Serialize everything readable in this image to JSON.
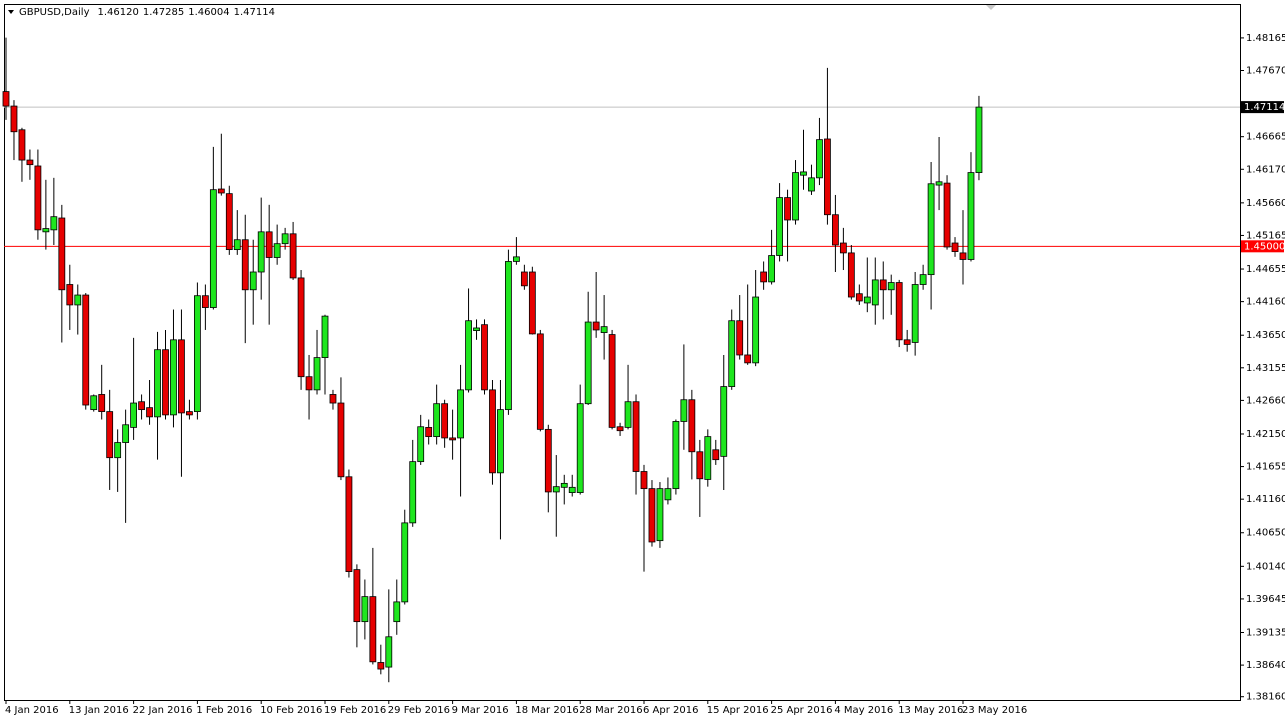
{
  "chart_data": {
    "type": "candlestick",
    "title": "GBPUSD,Daily",
    "header_values": [
      "1.46120",
      "1.47285",
      "1.46004",
      "1.47114"
    ],
    "up_color": "#1ee61e",
    "down_color": "#e60000",
    "wick_color": "#000000",
    "categories": [
      "4 Jan 2016",
      null,
      null,
      null,
      null,
      null,
      null,
      null,
      "13 Jan 2016",
      null,
      null,
      null,
      null,
      null,
      null,
      null,
      "22 Jan 2016",
      null,
      null,
      null,
      null,
      null,
      null,
      null,
      "1 Feb 2016",
      null,
      null,
      null,
      null,
      null,
      null,
      null,
      "10 Feb 2016",
      null,
      null,
      null,
      null,
      null,
      null,
      null,
      "19 Feb 2016",
      null,
      null,
      null,
      null,
      null,
      null,
      null,
      "29 Feb 2016",
      null,
      null,
      null,
      null,
      null,
      null,
      null,
      "9 Mar 2016",
      null,
      null,
      null,
      null,
      null,
      null,
      null,
      "18 Mar 2016",
      null,
      null,
      null,
      null,
      null,
      null,
      null,
      "28 Mar 2016",
      null,
      null,
      null,
      null,
      null,
      null,
      null,
      "6 Apr 2016",
      null,
      null,
      null,
      null,
      null,
      null,
      null,
      "15 Apr 2016",
      null,
      null,
      null,
      null,
      null,
      null,
      null,
      "25 Apr 2016",
      null,
      null,
      null,
      null,
      null,
      null,
      null,
      "4 May 2016",
      null,
      null,
      null,
      null,
      null,
      null,
      null,
      "13 May 2016",
      null,
      null,
      null,
      null,
      null,
      null,
      null,
      "23 May 2016",
      null,
      null
    ],
    "open": [
      1.4735,
      1.4713,
      1.4677,
      1.4631,
      1.4622,
      1.4522,
      1.4525,
      1.4543,
      1.4442,
      1.4411,
      1.4426,
      1.4252,
      1.4275,
      1.4249,
      1.4179,
      1.4202,
      1.4225,
      1.4264,
      1.4255,
      1.4241,
      1.4343,
      1.4244,
      1.4358,
      1.4249,
      1.4249,
      1.4425,
      1.4407,
      1.4587,
      1.458,
      1.4495,
      1.451,
      1.4434,
      1.4461,
      1.4522,
      1.4483,
      1.4504,
      1.4519,
      1.4452,
      1.4302,
      1.4282,
      1.4331,
      1.4275,
      1.4262,
      1.415,
      1.4009,
      1.393,
      1.3968,
      1.3868,
      1.3861,
      1.393,
      1.396,
      1.408,
      1.4173,
      1.4225,
      1.4211,
      1.4261,
      1.4209,
      1.4209,
      1.4282,
      1.4372,
      1.4381,
      1.4282,
      1.4156,
      1.4252,
      1.4477,
      1.4461,
      1.4461,
      1.4367,
      1.4222,
      1.4127,
      1.4134,
      1.4126,
      1.4126,
      1.4261,
      1.4385,
      1.4369,
      1.4366,
      1.4226,
      1.4225,
      1.4264,
      1.4158,
      1.4132,
      1.4053,
      1.4115,
      1.4132,
      1.4234,
      1.4267,
      1.4188,
      1.4146,
      1.4191,
      1.4181,
      1.4287,
      1.4387,
      1.4335,
      1.4323,
      1.4461,
      1.4446,
      1.4486,
      1.4574,
      1.454,
      1.4608,
      1.4584,
      1.4604,
      1.4663,
      1.4548,
      1.4505,
      1.449,
      1.4428,
      1.4414,
      1.4411,
      1.4449,
      1.4434,
      1.4445,
      1.4358,
      1.4354,
      1.4442,
      1.4457,
      1.4593,
      1.4596,
      1.4505,
      1.449,
      1.448,
      1.4612
    ],
    "high": [
      1.4817,
      1.4722,
      1.468,
      1.4647,
      1.4647,
      1.4601,
      1.4604,
      1.4563,
      1.4472,
      1.4442,
      1.4429,
      1.4275,
      1.432,
      1.4282,
      1.4222,
      1.4252,
      1.4361,
      1.4275,
      1.4297,
      1.437,
      1.4373,
      1.4404,
      1.4404,
      1.4267,
      1.4445,
      1.4442,
      1.4651,
      1.4671,
      1.4592,
      1.4555,
      1.4548,
      1.451,
      1.4574,
      1.4563,
      1.4533,
      1.4528,
      1.4537,
      1.4464,
      1.4335,
      1.4373,
      1.4396,
      1.4282,
      1.4301,
      1.4161,
      1.4017,
      1.3994,
      1.4042,
      1.3895,
      1.3979,
      1.3994,
      1.41,
      1.4206,
      1.4244,
      1.4237,
      1.429,
      1.4267,
      1.4252,
      1.432,
      1.4436,
      1.4389,
      1.4389,
      1.4297,
      1.4297,
      1.4495,
      1.4514,
      1.4472,
      1.4469,
      1.4373,
      1.4229,
      1.4183,
      1.4153,
      1.4153,
      1.429,
      1.4431,
      1.4461,
      1.4426,
      1.4373,
      1.4232,
      1.432,
      1.4275,
      1.4168,
      1.4145,
      1.4142,
      1.4149,
      1.4237,
      1.4351,
      1.4282,
      1.4206,
      1.4222,
      1.4206,
      1.4335,
      1.4404,
      1.4426,
      1.4442,
      1.4464,
      1.4477,
      1.4525,
      1.4596,
      1.4586,
      1.4631,
      1.4677,
      1.4624,
      1.4695,
      1.4771,
      1.4578,
      1.4528,
      1.4502,
      1.4442,
      1.4483,
      1.4483,
      1.4477,
      1.4457,
      1.4449,
      1.4373,
      1.4461,
      1.4472,
      1.4628,
      1.4666,
      1.4608,
      1.4514,
      1.4555,
      1.4643,
      1.47285
    ],
    "low": [
      1.4692,
      1.4631,
      1.4598,
      1.4601,
      1.451,
      1.4495,
      1.4502,
      1.4354,
      1.4373,
      1.4366,
      1.4252,
      1.4249,
      1.4237,
      1.413,
      1.4127,
      1.408,
      1.4206,
      1.4237,
      1.4229,
      1.4176,
      1.4237,
      1.4225,
      1.415,
      1.4237,
      1.4237,
      1.4373,
      1.4404,
      1.4577,
      1.4487,
      1.4487,
      1.4353,
      1.4381,
      1.4419,
      1.4381,
      1.4472,
      1.4495,
      1.4449,
      1.4282,
      1.4237,
      1.4275,
      1.4275,
      1.4252,
      1.4145,
      1.3997,
      1.3891,
      1.3903,
      1.3865,
      1.385,
      1.3838,
      1.391,
      1.3956,
      1.4074,
      1.4168,
      1.4199,
      1.4199,
      1.4194,
      1.4176,
      1.412,
      1.4278,
      1.4358,
      1.4275,
      1.4138,
      1.4055,
      1.4244,
      1.4472,
      1.4434,
      1.4366,
      1.4219,
      1.4096,
      1.4059,
      1.4108,
      1.412,
      1.4123,
      1.4259,
      1.4361,
      1.4328,
      1.4222,
      1.4212,
      1.4222,
      1.4123,
      1.4006,
      1.4044,
      1.4042,
      1.4108,
      1.4123,
      1.4191,
      1.4146,
      1.4089,
      1.4135,
      1.4168,
      1.413,
      1.4282,
      1.4328,
      1.432,
      1.4318,
      1.4434,
      1.4442,
      1.4477,
      1.4477,
      1.4533,
      1.4586,
      1.4578,
      1.4593,
      1.4533,
      1.4461,
      1.4464,
      1.4419,
      1.4411,
      1.44,
      1.4381,
      1.4389,
      1.4396,
      1.4347,
      1.434,
      1.4334,
      1.4434,
      1.4404,
      1.4555,
      1.4495,
      1.4484,
      1.4442,
      1.4477,
      1.46004
    ],
    "close": [
      1.4713,
      1.4674,
      1.4631,
      1.4624,
      1.4525,
      1.4527,
      1.4545,
      1.4434,
      1.4411,
      1.4426,
      1.4259,
      1.4273,
      1.4249,
      1.4179,
      1.4202,
      1.4229,
      1.4262,
      1.4252,
      1.4241,
      1.4343,
      1.4244,
      1.4358,
      1.4247,
      1.4244,
      1.4425,
      1.4407,
      1.4586,
      1.4581,
      1.4495,
      1.451,
      1.4434,
      1.4461,
      1.4522,
      1.4483,
      1.4504,
      1.4519,
      1.4452,
      1.4302,
      1.4282,
      1.4331,
      1.4394,
      1.4262,
      1.415,
      1.4006,
      1.393,
      1.3968,
      1.3869,
      1.3858,
      1.3907,
      1.396,
      1.408,
      1.4173,
      1.4226,
      1.4211,
      1.4261,
      1.4209,
      1.4206,
      1.4282,
      1.4387,
      1.4376,
      1.4282,
      1.4156,
      1.4252,
      1.4477,
      1.4484,
      1.444,
      1.4367,
      1.4222,
      1.4127,
      1.4135,
      1.414,
      1.4134,
      1.4261,
      1.4385,
      1.4373,
      1.4378,
      1.4225,
      1.422,
      1.4264,
      1.4158,
      1.4132,
      1.4051,
      1.4132,
      1.4132,
      1.4234,
      1.4267,
      1.4188,
      1.4147,
      1.4211,
      1.4176,
      1.4287,
      1.4387,
      1.4335,
      1.4323,
      1.4423,
      1.4446,
      1.4486,
      1.4574,
      1.454,
      1.4612,
      1.4613,
      1.4604,
      1.4662,
      1.4548,
      1.4502,
      1.449,
      1.4423,
      1.4417,
      1.4423,
      1.4449,
      1.4434,
      1.4445,
      1.4358,
      1.4351,
      1.4442,
      1.4457,
      1.4595,
      1.4598,
      1.4499,
      1.4492,
      1.448,
      1.4612,
      1.47114
    ],
    "ylim": [
      1.3811,
      1.4868
    ],
    "yticks": [
      1.48165,
      {
        "value": 1.4767,
        "label": "1.47670"
      },
      1.46665,
      {
        "value": 1.4617,
        "label": "1.46170"
      },
      {
        "value": 1.4566,
        "label": "1.45660"
      },
      1.45165,
      1.44655,
      {
        "value": 1.4416,
        "label": "1.44160"
      },
      {
        "value": 1.4365,
        "label": "1.43650"
      },
      1.43155,
      {
        "value": 1.4266,
        "label": "1.42660"
      },
      {
        "value": 1.4215,
        "label": "1.42150"
      },
      1.41655,
      {
        "value": 1.4116,
        "label": "1.41160"
      },
      {
        "value": 1.4065,
        "label": "1.40650"
      },
      {
        "value": 1.4014,
        "label": "1.40140"
      },
      1.39645,
      1.39135,
      {
        "value": 1.3864,
        "label": "1.38640"
      },
      {
        "value": 1.3816,
        "label": "1.38160"
      }
    ],
    "hlines": [
      {
        "value": 1.47114,
        "label": "1.47114",
        "color": "#c0c0c0",
        "tag_color": "#000000"
      },
      {
        "value": 1.45,
        "label": "1.45000",
        "color": "#ff0000",
        "tag_color": "#ff0000"
      }
    ]
  }
}
